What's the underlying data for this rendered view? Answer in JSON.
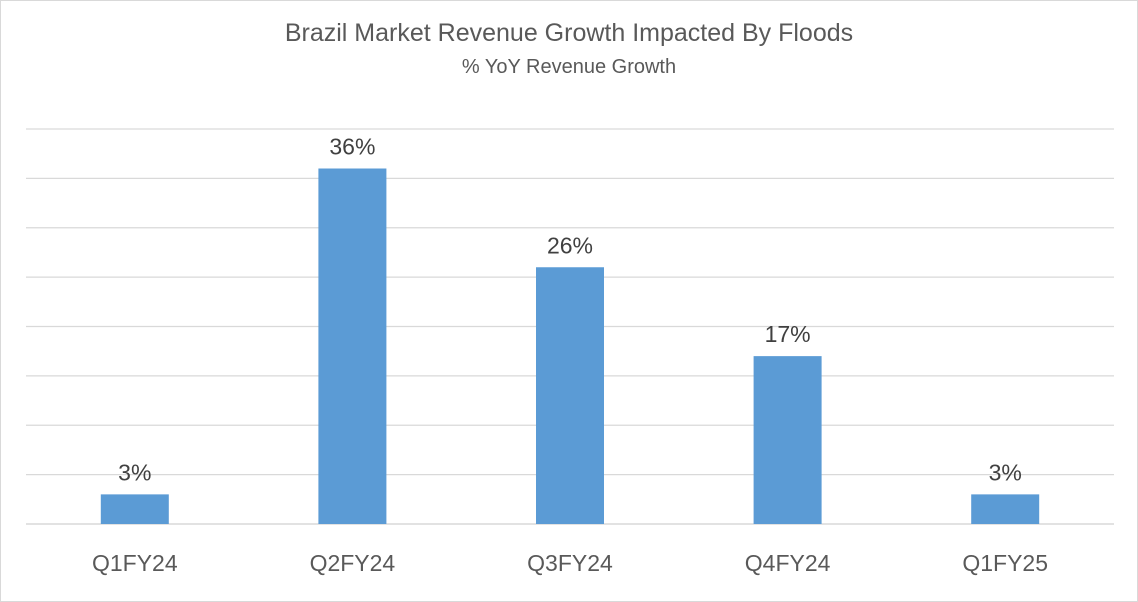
{
  "chart_data": {
    "type": "bar",
    "title": "Brazil Market Revenue Growth Impacted By Floods",
    "subtitle": "% YoY Revenue Growth",
    "categories": [
      "Q1FY24",
      "Q2FY24",
      "Q3FY24",
      "Q4FY24",
      "Q1FY25"
    ],
    "values": [
      3,
      36,
      26,
      17,
      3
    ],
    "data_labels": [
      "3%",
      "36%",
      "26%",
      "17%",
      "3%"
    ],
    "ylim": [
      0,
      40
    ],
    "grid": true,
    "legend": "none",
    "bar_color": "#5b9bd5",
    "xlabel": "",
    "ylabel": ""
  }
}
